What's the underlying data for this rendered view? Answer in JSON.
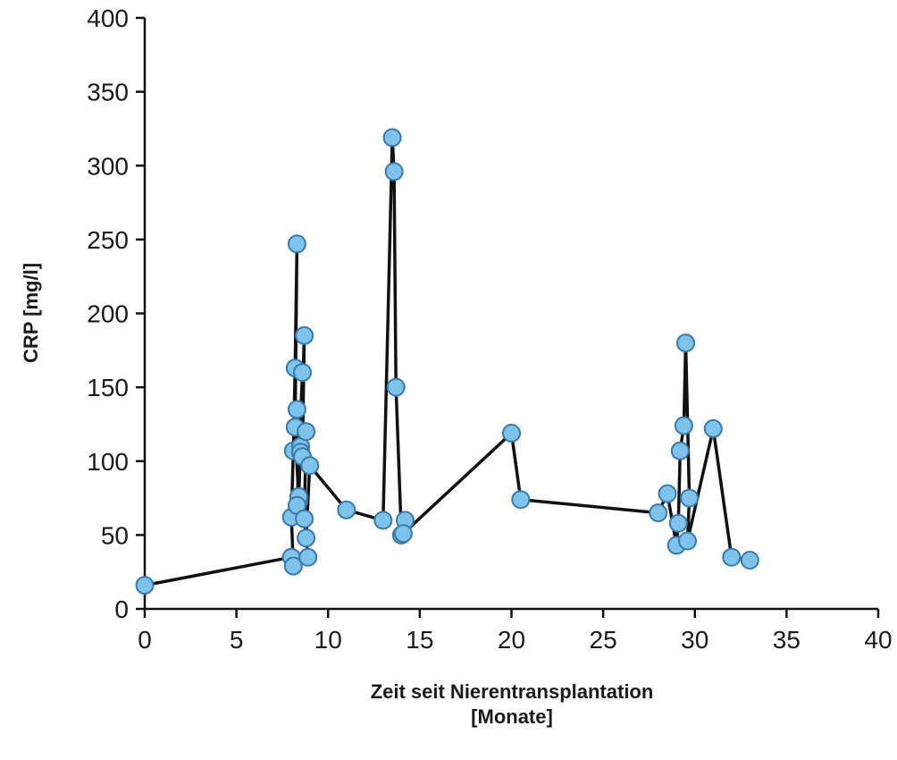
{
  "chart_data": {
    "type": "line",
    "title": "",
    "xlabel": [
      "Zeit seit Nierentransplantation",
      "[Monate]"
    ],
    "ylabel": "CRP [mg/l]",
    "xlim": [
      0,
      40
    ],
    "ylim": [
      0,
      400
    ],
    "xticks": [
      0,
      5,
      10,
      15,
      20,
      25,
      30,
      35,
      40
    ],
    "yticks": [
      0,
      50,
      100,
      150,
      200,
      250,
      300,
      350,
      400
    ],
    "grid": false,
    "legend": "none",
    "line_color": "#111111",
    "marker_fill": "#7ec3ea",
    "marker_stroke": "#3b79a8",
    "series": [
      {
        "x": [
          0,
          8.0,
          8.1,
          8.0,
          8.1,
          8.2,
          8.3,
          8.2,
          8.4,
          8.3,
          8.4,
          8.5,
          8.6,
          8.3,
          8.5,
          8.7,
          8.6,
          8.8,
          8.7,
          8.9,
          8.8,
          9.0,
          11.0,
          13.0,
          13.5,
          13.6,
          13.7,
          14.0,
          14.2,
          14.1,
          20.0,
          20.5,
          28.0,
          28.5,
          29.0,
          29.1,
          29.2,
          29.4,
          29.5,
          29.7,
          29.6,
          31.0,
          32.0,
          33.0
        ],
        "y": [
          16,
          35,
          29,
          62,
          107,
          163,
          247,
          123,
          73,
          135,
          76,
          110,
          160,
          70,
          106,
          185,
          103,
          120,
          61,
          35,
          48,
          97,
          67,
          60,
          319,
          296,
          150,
          50,
          60,
          51,
          119,
          74,
          65,
          78,
          43,
          58,
          107,
          124,
          180,
          75,
          46,
          122,
          35,
          33
        ]
      }
    ]
  }
}
